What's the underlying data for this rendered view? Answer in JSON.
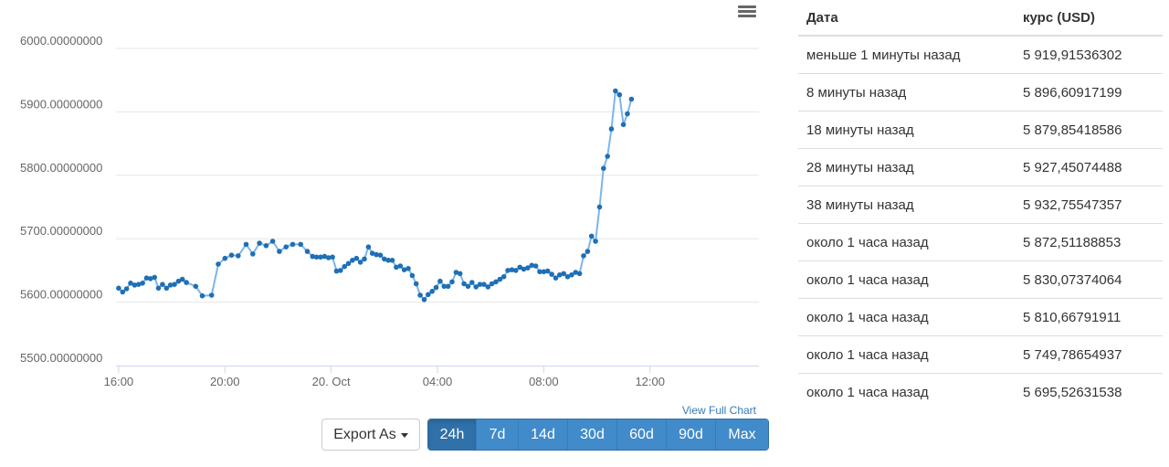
{
  "chart_data": {
    "type": "line",
    "ylim": [
      5500,
      6000
    ],
    "y_ticks": [
      "6000.00000000",
      "5900.00000000",
      "5800.00000000",
      "5700.00000000",
      "5600.00000000",
      "5500.00000000"
    ],
    "x_ticks": [
      {
        "label": "16:00",
        "hour": 0
      },
      {
        "label": "20:00",
        "hour": 4
      },
      {
        "label": "20. Oct",
        "hour": 8
      },
      {
        "label": "04:00",
        "hour": 12
      },
      {
        "label": "08:00",
        "hour": 16
      },
      {
        "label": "12:00",
        "hour": 20
      }
    ],
    "x_range_hours": [
      -0.1,
      24.1
    ],
    "grid": true,
    "line_color": "#7cb5ec",
    "point_color": "#1f6fb5",
    "points": [
      [
        0.0,
        5622
      ],
      [
        0.15,
        5616
      ],
      [
        0.3,
        5621
      ],
      [
        0.45,
        5630
      ],
      [
        0.6,
        5627
      ],
      [
        0.75,
        5628
      ],
      [
        0.9,
        5630
      ],
      [
        1.05,
        5638
      ],
      [
        1.2,
        5637
      ],
      [
        1.35,
        5639
      ],
      [
        1.5,
        5622
      ],
      [
        1.65,
        5628
      ],
      [
        1.8,
        5622
      ],
      [
        1.95,
        5627
      ],
      [
        2.1,
        5628
      ],
      [
        2.25,
        5633
      ],
      [
        2.4,
        5636
      ],
      [
        2.55,
        5631
      ],
      [
        2.9,
        5625
      ],
      [
        3.15,
        5610
      ],
      [
        3.5,
        5611
      ],
      [
        3.75,
        5660
      ],
      [
        4.0,
        5669
      ],
      [
        4.25,
        5674
      ],
      [
        4.5,
        5673
      ],
      [
        4.8,
        5691
      ],
      [
        5.05,
        5676
      ],
      [
        5.3,
        5693
      ],
      [
        5.55,
        5689
      ],
      [
        5.8,
        5696
      ],
      [
        6.05,
        5680
      ],
      [
        6.3,
        5687
      ],
      [
        6.55,
        5691
      ],
      [
        6.85,
        5691
      ],
      [
        7.1,
        5680
      ],
      [
        7.3,
        5672
      ],
      [
        7.45,
        5671
      ],
      [
        7.6,
        5671
      ],
      [
        7.75,
        5672
      ],
      [
        7.9,
        5670
      ],
      [
        8.05,
        5671
      ],
      [
        8.2,
        5649
      ],
      [
        8.35,
        5650
      ],
      [
        8.5,
        5656
      ],
      [
        8.65,
        5661
      ],
      [
        8.8,
        5666
      ],
      [
        8.95,
        5669
      ],
      [
        9.1,
        5663
      ],
      [
        9.25,
        5668
      ],
      [
        9.4,
        5687
      ],
      [
        9.55,
        5677
      ],
      [
        9.7,
        5675
      ],
      [
        9.85,
        5674
      ],
      [
        10.0,
        5668
      ],
      [
        10.15,
        5666
      ],
      [
        10.3,
        5666
      ],
      [
        10.45,
        5655
      ],
      [
        10.6,
        5657
      ],
      [
        10.75,
        5651
      ],
      [
        10.9,
        5653
      ],
      [
        11.05,
        5642
      ],
      [
        11.2,
        5629
      ],
      [
        11.35,
        5611
      ],
      [
        11.5,
        5604
      ],
      [
        11.65,
        5612
      ],
      [
        11.8,
        5617
      ],
      [
        11.95,
        5623
      ],
      [
        12.1,
        5633
      ],
      [
        12.25,
        5625
      ],
      [
        12.4,
        5625
      ],
      [
        12.55,
        5632
      ],
      [
        12.7,
        5647
      ],
      [
        12.85,
        5645
      ],
      [
        13.0,
        5629
      ],
      [
        13.15,
        5625
      ],
      [
        13.3,
        5631
      ],
      [
        13.45,
        5624
      ],
      [
        13.6,
        5628
      ],
      [
        13.75,
        5628
      ],
      [
        13.9,
        5624
      ],
      [
        14.05,
        5629
      ],
      [
        14.2,
        5632
      ],
      [
        14.35,
        5636
      ],
      [
        14.5,
        5640
      ],
      [
        14.65,
        5650
      ],
      [
        14.8,
        5651
      ],
      [
        14.95,
        5650
      ],
      [
        15.1,
        5655
      ],
      [
        15.25,
        5652
      ],
      [
        15.4,
        5654
      ],
      [
        15.55,
        5658
      ],
      [
        15.7,
        5657
      ],
      [
        15.85,
        5648
      ],
      [
        16.0,
        5648
      ],
      [
        16.15,
        5649
      ],
      [
        16.3,
        5644
      ],
      [
        16.45,
        5638
      ],
      [
        16.6,
        5643
      ],
      [
        16.75,
        5645
      ],
      [
        16.9,
        5640
      ],
      [
        17.05,
        5643
      ],
      [
        17.2,
        5647
      ],
      [
        17.35,
        5645
      ],
      [
        17.5,
        5673
      ],
      [
        17.65,
        5680
      ],
      [
        17.8,
        5704
      ],
      [
        17.95,
        5696
      ],
      [
        18.1,
        5750
      ],
      [
        18.25,
        5811
      ],
      [
        18.4,
        5830
      ],
      [
        18.55,
        5873
      ],
      [
        18.7,
        5933
      ],
      [
        18.85,
        5927
      ],
      [
        19.0,
        5880
      ],
      [
        19.15,
        5897
      ],
      [
        19.3,
        5920
      ]
    ]
  },
  "menu_icon": "hamburger-menu-icon",
  "full_chart_link": "View Full Chart",
  "export_label": "Export As",
  "ranges": [
    {
      "label": "24h",
      "active": true
    },
    {
      "label": "7d",
      "active": false
    },
    {
      "label": "14d",
      "active": false
    },
    {
      "label": "30d",
      "active": false
    },
    {
      "label": "60d",
      "active": false
    },
    {
      "label": "90d",
      "active": false
    },
    {
      "label": "Max",
      "active": false
    }
  ],
  "table": {
    "headers": {
      "date": "Дата",
      "rate": "курс (USD)"
    },
    "rows": [
      {
        "date": "меньше 1 минуты назад",
        "rate": "5 919,91536302"
      },
      {
        "date": "8 минуты назад",
        "rate": "5 896,60917199"
      },
      {
        "date": "18 минуты назад",
        "rate": "5 879,85418586"
      },
      {
        "date": "28 минуты назад",
        "rate": "5 927,45074488"
      },
      {
        "date": "38 минуты назад",
        "rate": "5 932,75547357"
      },
      {
        "date": "около 1 часа назад",
        "rate": "5 872,51188853"
      },
      {
        "date": "около 1 часа назад",
        "rate": "5 830,07374064"
      },
      {
        "date": "около 1 часа назад",
        "rate": "5 810,66791911"
      },
      {
        "date": "около 1 часа назад",
        "rate": "5 749,78654937"
      },
      {
        "date": "около 1 часа назад",
        "rate": "5 695,52631538"
      }
    ]
  }
}
